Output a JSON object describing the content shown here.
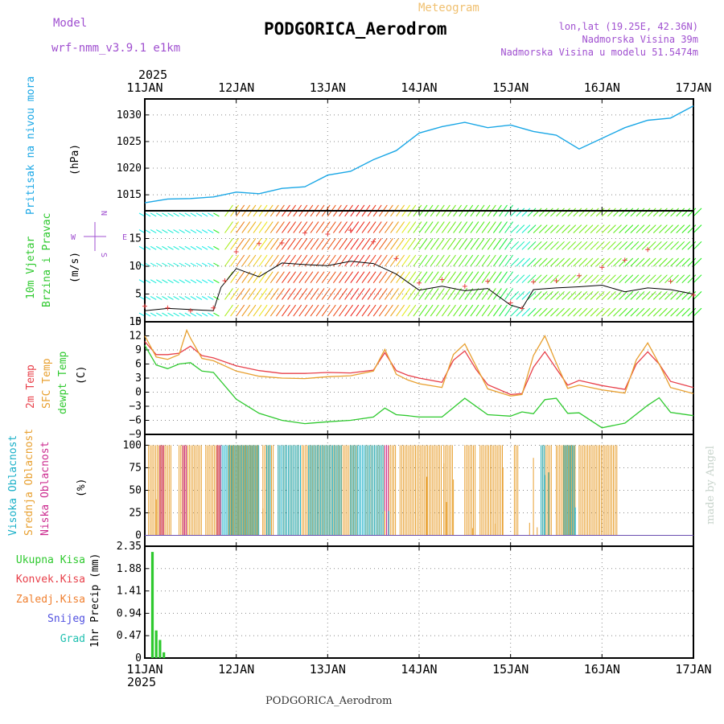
{
  "header": {
    "model_label": "Model",
    "model_name": "wrf-nmm_v3.9.1 e1km",
    "product": "Meteogram",
    "station": "PODGORICA_Aerodrom",
    "lonlat": "lon,lat (19.25E, 42.36N)",
    "elevation": "Nadmorska Visina 39m",
    "model_elevation": "Nadmorska Visina u modelu 51.5474m",
    "credit": "made by Angel",
    "footer_station": "PODGORICA_Aerodrom"
  },
  "colors": {
    "pressure": "#1aa7e6",
    "temp2m": "#e8404a",
    "sfc": "#e8a030",
    "dewpt": "#2ec92e",
    "high_cloud": "#1ab0c8",
    "mid_cloud": "#e8a030",
    "low_cloud": "#cc2b8f",
    "precip": "#2ec92e",
    "conv": "#e8404a",
    "frozen": "#f08030",
    "snow": "#5050e0",
    "hail": "#20c0b0",
    "wind_speed_line": "#000000",
    "gust_marker": "#e84040"
  },
  "chart_data": {
    "type": "meteogram",
    "year": "2025",
    "x_ticks": [
      "11JAN",
      "12JAN",
      "13JAN",
      "14JAN",
      "15JAN",
      "16JAN",
      "17JAN"
    ],
    "x_range_hours": [
      0,
      144
    ],
    "panels": {
      "pressure": {
        "title": "Pritisak na nivou mora",
        "unit": "(hPa)",
        "ylim": [
          1012,
          1033
        ],
        "yticks": [
          1015,
          1020,
          1025,
          1030
        ],
        "series": [
          {
            "hours": [
              0,
              6,
              12,
              18,
              24,
              30,
              36,
              42,
              48,
              54,
              60,
              66,
              72,
              78,
              84,
              90,
              96,
              102,
              108,
              114,
              120,
              126,
              132,
              138,
              144
            ],
            "values": [
              1013.5,
              1014.2,
              1014.3,
              1014.6,
              1015.5,
              1015.2,
              1016.2,
              1016.5,
              1018.7,
              1019.4,
              1021.6,
              1023.3,
              1026.6,
              1027.8,
              1028.6,
              1027.6,
              1028.1,
              1026.9,
              1026.2,
              1023.6,
              1025.6,
              1027.6,
              1029.0,
              1029.4,
              1031.7
            ]
          }
        ]
      },
      "wind": {
        "title": "10m Vjetar",
        "title2": "Brzina i Pravac",
        "unit": "(m/s)",
        "compass": [
          "N",
          "E",
          "S",
          "W"
        ],
        "ylim": [
          0,
          20
        ],
        "yticks": [
          0,
          5,
          10,
          15
        ],
        "speed": {
          "hours": [
            0,
            6,
            12,
            18,
            20,
            24,
            30,
            36,
            42,
            48,
            54,
            60,
            66,
            72,
            78,
            84,
            90,
            96,
            99,
            102,
            108,
            114,
            120,
            126,
            132,
            138,
            144
          ],
          "values": [
            2.0,
            2.4,
            2.2,
            2.0,
            6.2,
            9.6,
            8.1,
            10.6,
            10.3,
            10.1,
            10.9,
            10.5,
            8.6,
            5.7,
            6.4,
            5.6,
            6.0,
            3.0,
            2.4,
            5.8,
            6.1,
            6.3,
            6.6,
            5.4,
            6.1,
            5.8,
            5.0
          ]
        },
        "gust": {
          "hours": [
            0,
            6,
            12,
            18,
            21,
            24,
            30,
            36,
            42,
            48,
            54,
            60,
            66,
            72,
            78,
            84,
            90,
            96,
            99,
            102,
            108,
            114,
            120,
            126,
            132,
            138,
            144
          ],
          "values": [
            2.8,
            2.5,
            2.0,
            2.5,
            7.4,
            12.6,
            14.1,
            14.2,
            16.0,
            15.8,
            16.5,
            14.4,
            11.4,
            7.0,
            7.6,
            6.4,
            7.3,
            3.4,
            2.4,
            7.2,
            7.4,
            8.3,
            9.8,
            11.1,
            13.0,
            7.3,
            4.8
          ]
        }
      },
      "temperature": {
        "titles": [
          "2m Temp",
          "SFC Temp",
          "dewpt Temp"
        ],
        "unit": "(C)",
        "ylim": [
          -9,
          15
        ],
        "yticks": [
          -9,
          -6,
          -3,
          0,
          3,
          6,
          9,
          12,
          15
        ],
        "series": [
          {
            "name": "2m Temp",
            "hours": [
              0,
              3,
              6,
              9,
              12,
              15,
              18,
              24,
              30,
              36,
              42,
              48,
              54,
              60,
              63,
              66,
              69,
              72,
              78,
              81,
              84,
              87,
              90,
              96,
              99,
              102,
              105,
              108,
              111,
              114,
              120,
              126,
              129,
              132,
              135,
              138,
              144
            ],
            "values": [
              10.8,
              8.0,
              8.0,
              8.3,
              9.8,
              7.8,
              7.3,
              5.6,
              4.6,
              4.0,
              4.0,
              4.2,
              4.1,
              4.7,
              8.4,
              4.6,
              3.6,
              3.0,
              2.1,
              6.8,
              8.8,
              4.8,
              1.6,
              -0.5,
              -0.3,
              5.3,
              8.6,
              5.0,
              1.5,
              2.5,
              1.4,
              0.6,
              6.0,
              8.6,
              6.0,
              2.3,
              1.0
            ]
          },
          {
            "name": "SFC Temp",
            "hours": [
              0,
              3,
              6,
              9,
              11,
              12,
              15,
              18,
              24,
              30,
              36,
              42,
              48,
              54,
              60,
              63,
              66,
              69,
              72,
              78,
              81,
              84,
              87,
              90,
              96,
              99,
              102,
              105,
              108,
              111,
              114,
              120,
              126,
              129,
              132,
              135,
              138,
              144
            ],
            "values": [
              12.0,
              7.5,
              7.0,
              8.0,
              13.2,
              11.5,
              7.2,
              6.7,
              4.5,
              3.4,
              3.0,
              2.9,
              3.3,
              3.5,
              4.5,
              9.1,
              3.8,
              2.6,
              1.8,
              1.0,
              8.0,
              10.3,
              5.5,
              0.7,
              -0.8,
              -0.5,
              7.8,
              12.0,
              6.2,
              0.8,
              1.5,
              0.5,
              -0.2,
              6.9,
              10.5,
              6.0,
              1.0,
              -0.3
            ]
          },
          {
            "name": "dewpt Temp",
            "hours": [
              0,
              3,
              6,
              9,
              12,
              15,
              18,
              24,
              30,
              36,
              42,
              48,
              54,
              60,
              63,
              66,
              69,
              72,
              78,
              84,
              90,
              96,
              99,
              102,
              105,
              108,
              111,
              114,
              120,
              126,
              132,
              135,
              138,
              144
            ],
            "values": [
              10.0,
              5.8,
              5.0,
              6.0,
              6.3,
              4.5,
              4.2,
              -1.5,
              -4.5,
              -6.0,
              -6.7,
              -6.3,
              -6.0,
              -5.3,
              -3.4,
              -4.8,
              -5.0,
              -5.3,
              -5.3,
              -1.3,
              -4.8,
              -5.1,
              -4.2,
              -4.6,
              -1.6,
              -1.3,
              -4.5,
              -4.4,
              -7.6,
              -6.6,
              -2.8,
              -1.2,
              -4.3,
              -5.0
            ]
          }
        ]
      },
      "clouds": {
        "titles": [
          "Visoka Oblacnost",
          "Srednja Oblacnost",
          "Niska Oblacnost"
        ],
        "unit": "(%)",
        "ylim": [
          0,
          100
        ],
        "yticks": [
          0,
          25,
          50,
          75,
          100
        ],
        "bars": [
          {
            "name": "Srednja Oblacnost",
            "hour_ranges": [
              [
                1,
                7
              ],
              [
                9,
                15
              ],
              [
                16,
                20
              ],
              [
                22,
                30
              ],
              [
                31,
                34
              ],
              [
                35,
                56
              ],
              [
                58,
                63
              ],
              [
                64,
                66
              ],
              [
                67,
                78
              ],
              [
                78.5,
                81
              ],
              [
                84,
                87
              ],
              [
                88,
                94
              ],
              [
                97,
                98
              ],
              [
                104,
                107
              ],
              [
                108,
                113
              ],
              [
                114,
                124
              ]
            ],
            "value": 100
          },
          {
            "name": "Visoka Oblacnost",
            "hour_ranges": [
              [
                20,
                30
              ],
              [
                32,
                33
              ],
              [
                35,
                41
              ],
              [
                43,
                52
              ],
              [
                54,
                63
              ],
              [
                104,
                105
              ],
              [
                110,
                113
              ]
            ],
            "value": 100
          },
          {
            "name": "Niska Oblacnost",
            "hour_ranges": [
              [
                4,
                5
              ],
              [
                10,
                11
              ],
              [
                19,
                20
              ],
              [
                63,
                64
              ]
            ],
            "value": 100
          },
          {
            "name": "Srednja Oblacnost partial",
            "points": [
              [
                3,
                40
              ],
              [
                31,
                30
              ],
              [
                63,
                27
              ],
              [
                74,
                65
              ],
              [
                78.5,
                80
              ],
              [
                79.2,
                37
              ],
              [
                81,
                62
              ],
              [
                86,
                8
              ],
              [
                92,
                13
              ],
              [
                94,
                75
              ],
              [
                101,
                14
              ],
              [
                102,
                86
              ],
              [
                103,
                9
              ]
            ],
            "unit": "%"
          },
          {
            "name": "Visoka Oblacnost partial",
            "points": [
              [
                64,
                27
              ],
              [
                105,
                67
              ],
              [
                106,
                70
              ],
              [
                113,
                31
              ]
            ],
            "unit": "%"
          }
        ]
      },
      "precip": {
        "legend": [
          "Ukupna Kisa",
          "Konvek.Kisa",
          "Zaledj.Kisa",
          "Snijeg",
          "Grad"
        ],
        "unit": "1hr Precip (mm)",
        "ylim": [
          0,
          2.35
        ],
        "yticks": [
          "0",
          "0.47",
          "0.94",
          "1.41",
          "1.88",
          "2.35"
        ],
        "series": [
          {
            "name": "Ukupna Kisa",
            "hours": [
              2,
              3,
              4,
              5
            ],
            "values": [
              2.23,
              0.58,
              0.38,
              0.12
            ]
          }
        ]
      }
    }
  }
}
